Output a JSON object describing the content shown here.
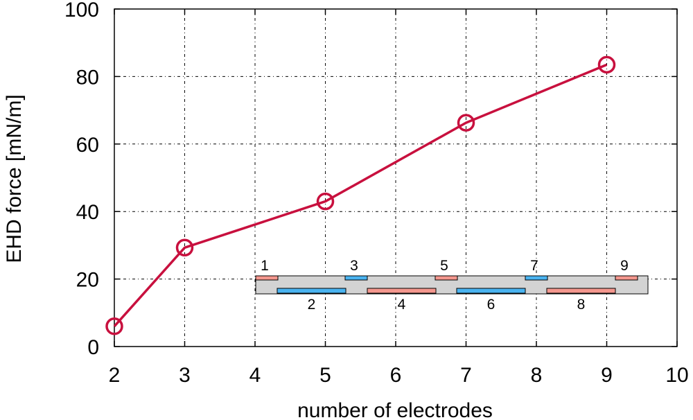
{
  "chart_data": {
    "type": "line",
    "xlabel": "number of electrodes",
    "ylabel": "EHD force [mN/m]",
    "xlim": [
      2,
      10
    ],
    "ylim": [
      0,
      100
    ],
    "xticks": [
      2,
      3,
      4,
      5,
      6,
      7,
      8,
      9,
      10
    ],
    "yticks": [
      0,
      20,
      40,
      60,
      80,
      100
    ],
    "grid": true,
    "series": [
      {
        "x": [
          2,
          3,
          5,
          7,
          9
        ],
        "y": [
          6,
          29.3,
          43,
          66.3,
          83.5
        ],
        "color": "#c8103e",
        "marker": "open-circle"
      }
    ]
  },
  "inset": {
    "description_free": true,
    "substrate_color": "#d3d3d3",
    "colors": {
      "red": "#f4978e",
      "blue": "#4ab3f0"
    },
    "top_electrodes": [
      {
        "label": "1",
        "color": "red"
      },
      {
        "label": "3",
        "color": "blue"
      },
      {
        "label": "5",
        "color": "red"
      },
      {
        "label": "7",
        "color": "blue"
      },
      {
        "label": "9",
        "color": "red"
      }
    ],
    "bottom_electrodes": [
      {
        "label": "2",
        "color": "blue"
      },
      {
        "label": "4",
        "color": "red"
      },
      {
        "label": "6",
        "color": "blue"
      },
      {
        "label": "8",
        "color": "red"
      }
    ]
  }
}
